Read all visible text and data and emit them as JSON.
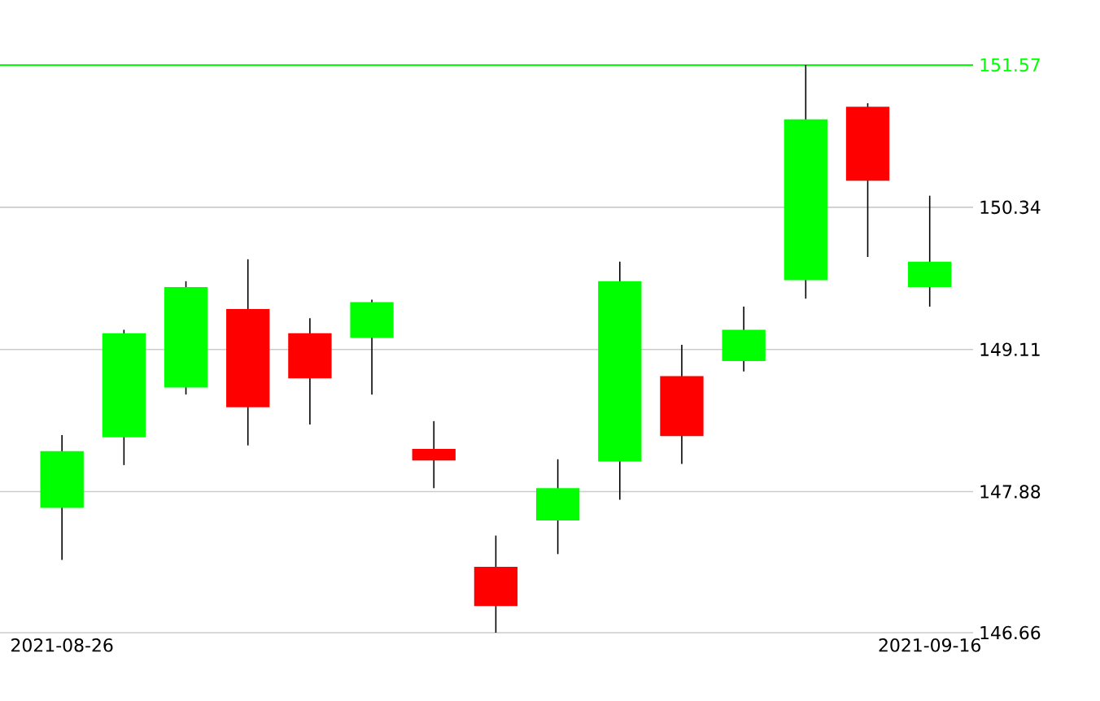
{
  "chart_data": {
    "type": "candlestick",
    "categories": [
      "2021-08-26",
      null,
      null,
      null,
      null,
      null,
      null,
      null,
      null,
      null,
      null,
      null,
      null,
      null,
      "2021-09-16"
    ],
    "ohlc": [
      [
        147.74,
        148.37,
        147.29,
        148.23
      ],
      [
        148.35,
        149.28,
        148.11,
        149.25
      ],
      [
        148.78,
        149.7,
        148.72,
        149.65
      ],
      [
        149.46,
        149.89,
        148.28,
        148.61
      ],
      [
        149.25,
        149.38,
        148.46,
        148.86
      ],
      [
        149.21,
        149.54,
        148.72,
        149.52
      ],
      [
        148.25,
        148.49,
        147.91,
        148.15
      ],
      [
        147.23,
        147.5,
        146.66,
        146.89
      ],
      [
        147.63,
        148.16,
        147.34,
        147.91
      ],
      [
        148.14,
        149.87,
        147.81,
        149.7
      ],
      [
        148.88,
        149.15,
        148.12,
        148.36
      ],
      [
        149.01,
        149.48,
        148.92,
        149.28
      ],
      [
        149.71,
        151.57,
        149.55,
        151.1
      ],
      [
        151.21,
        151.24,
        149.91,
        150.57
      ],
      [
        149.65,
        150.44,
        149.48,
        149.87
      ]
    ],
    "colors": [
      "#00ff00",
      "#00ff00",
      "#00ff00",
      "#ff0000",
      "#ff0000",
      "#00ff00",
      "#ff0000",
      "#ff0000",
      "#00ff00",
      "#00ff00",
      "#ff0000",
      "#00ff00",
      "#00ff00",
      "#ff0000",
      "#00ff00"
    ],
    "ylim": [
      146.66,
      151.57
    ],
    "yticks": [
      146.66,
      147.88,
      149.11,
      150.34
    ],
    "ref_lines": [
      {
        "axis": "y",
        "value": 151.57,
        "label": "151.57",
        "color": "#00ff00"
      }
    ],
    "grid": "y"
  }
}
